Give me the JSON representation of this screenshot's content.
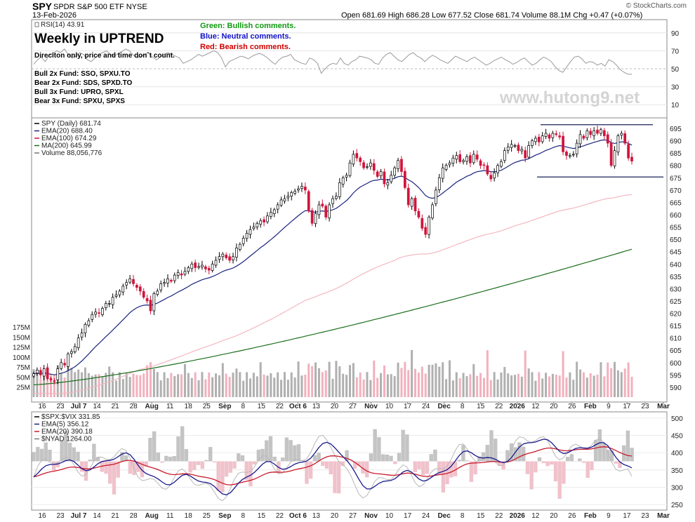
{
  "header": {
    "symbol": "SPY",
    "name": "SPDR S&P 500 ETF",
    "exchange": "NYSE",
    "date": "13-Feb-2026",
    "brand": "© StockCharts.com",
    "quote": "Open 681.69   High 686.28   Low 677.52   Close 681.74   Volume 88.1M   Chg +0.47 (+0.07%)"
  },
  "annotations": {
    "title": "Weekly in UPTREND",
    "subtitle": "Direciton only, price and time don`t count.",
    "funds": [
      "Bull 2x Fund: SSO, SPXU.TO",
      "Bear 2x Fund: SDS, SPXD.TO",
      "Bull 3x Fund: UPRO, SPXL",
      "Bear 3x Fund: SPXU, SPXS"
    ],
    "green": "Green: Bullish comments.",
    "blue": "Blue: Neutral comments.",
    "red": "Red: Bearish comments.",
    "watermark": "www.hutong9.net"
  },
  "colors": {
    "up": "#ffffff",
    "down": "#d0143c",
    "ema20": "#1a237e",
    "ema100": "#f2b8c0",
    "ma200": "#1b6e1b",
    "vol_up": "#b0b0b0",
    "vol_down": "#f2b1bd",
    "green_comment": "#119911",
    "blue_comment": "#1010c8",
    "red_comment": "#d00000"
  },
  "chart_data": [
    {
      "type": "line",
      "panel": "RSI",
      "legend": "RSI(14) 43.91",
      "ylim": [
        0,
        100
      ],
      "y_ticks": [
        10,
        30,
        50,
        70,
        90
      ],
      "values": [
        55,
        60,
        63,
        58,
        65,
        67,
        70,
        68,
        72,
        66,
        62,
        64,
        68,
        66,
        60,
        58,
        62,
        66,
        68,
        70,
        66,
        64,
        67,
        69,
        72,
        70,
        65,
        62,
        64,
        66,
        68,
        63,
        60,
        63,
        66,
        68,
        66,
        64,
        62,
        56,
        58,
        60,
        63,
        66,
        64,
        66,
        68,
        70,
        68,
        62,
        52,
        58,
        60,
        62,
        64,
        63,
        61,
        64,
        66,
        67,
        65,
        62,
        58,
        55,
        60,
        63,
        64,
        66,
        60,
        58,
        56,
        55,
        62,
        60,
        56,
        45,
        50,
        54,
        56,
        55,
        62,
        56,
        54,
        58,
        60,
        64,
        63,
        62,
        60,
        56,
        55,
        62,
        66,
        68,
        64,
        60,
        58,
        62,
        66,
        68,
        64,
        62,
        58,
        62,
        65,
        63,
        60,
        58,
        56,
        60,
        64,
        62,
        60,
        58,
        61,
        63,
        60,
        57,
        54,
        56,
        59,
        61,
        63,
        60,
        58,
        55,
        57,
        60,
        62,
        58,
        54,
        56,
        60,
        63,
        61,
        58,
        52,
        48,
        46,
        52,
        58,
        63,
        64,
        61,
        56,
        58,
        57,
        54,
        56,
        53,
        60,
        58,
        54,
        49,
        46,
        44,
        43.91
      ]
    },
    {
      "type": "candlestick",
      "panel": "Price",
      "legend": [
        "SPY (Daily) 681.74",
        "EMA(20) 688.40",
        "EMA(100) 674.29",
        "MA(200) 645.99",
        "Volume 88,056,776"
      ],
      "ylim": [
        586,
        697
      ],
      "y_ticks": [
        590,
        595,
        600,
        605,
        610,
        615,
        620,
        625,
        630,
        635,
        640,
        645,
        650,
        655,
        660,
        665,
        670,
        675,
        680,
        685,
        690,
        695
      ],
      "vol_ticks": [
        "25M",
        "50M",
        "75M",
        "100M",
        "125M",
        "150M",
        "175M"
      ],
      "x_ticks": [
        "16",
        "23",
        "Jul 7",
        "14",
        "21",
        "28",
        "Aug",
        "11",
        "18",
        "25",
        "Sep",
        "8",
        "15",
        "22",
        "Oct 6",
        "13",
        "20",
        "27",
        "Nov",
        "10",
        "17",
        "24",
        "Dec",
        "8",
        "15",
        "22",
        "2026",
        "12",
        "20",
        "26",
        "Feb",
        "9",
        "17",
        "23",
        "Mar"
      ],
      "closes": [
        595.5,
        597.0,
        595.0,
        597.5,
        593.5,
        593.0,
        592.5,
        597.5,
        600.0,
        599.0,
        603.5,
        604.5,
        606.5,
        610.0,
        612.0,
        615.5,
        617.0,
        619.5,
        620.5,
        620.0,
        622.0,
        624.0,
        624.0,
        626.5,
        627.5,
        629.0,
        631.0,
        632.5,
        634.0,
        632.0,
        630.5,
        629.0,
        626.5,
        625.0,
        621.0,
        628.0,
        629.0,
        632.0,
        632.5,
        634.0,
        633.0,
        635.5,
        636.5,
        635.5,
        637.0,
        638.5,
        640.0,
        638.5,
        639.0,
        639.5,
        638.0,
        637.5,
        640.0,
        641.5,
        643.0,
        644.0,
        642.5,
        641.5,
        643.0,
        646.5,
        648.0,
        650.5,
        652.5,
        654.0,
        655.0,
        656.5,
        657.5,
        657.0,
        659.5,
        661.0,
        662.0,
        664.0,
        666.0,
        666.5,
        667.5,
        669.0,
        669.5,
        670.5,
        671.5,
        670.0,
        661.5,
        656.5,
        660.5,
        664.0,
        663.5,
        659.0,
        664.0,
        666.5,
        667.5,
        673.0,
        675.0,
        676.0,
        681.0,
        684.5,
        683.0,
        681.5,
        679.0,
        679.5,
        681.0,
        678.0,
        675.5,
        677.5,
        672.5,
        673.0,
        676.0,
        679.0,
        682.0,
        677.5,
        671.0,
        664.0,
        666.5,
        661.5,
        659.0,
        654.5,
        652.0,
        659.0,
        664.0,
        670.0,
        675.0,
        679.0,
        680.0,
        681.0,
        683.0,
        684.0,
        681.5,
        682.0,
        683.5,
        681.0,
        684.5,
        682.5,
        680.0,
        680.0,
        676.5,
        674.5,
        677.0,
        680.0,
        681.5,
        686.0,
        687.5,
        688.5,
        688.0,
        686.0,
        686.5,
        683.0,
        688.0,
        690.0,
        691.0,
        689.5,
        692.0,
        693.0,
        691.0,
        693.0,
        692.5,
        691.5,
        685.5,
        684.0,
        684.0,
        684.5,
        689.0,
        692.5,
        691.0,
        694.0,
        692.5,
        694.0,
        693.0,
        694.5,
        692.0,
        689.0,
        680.0,
        686.0,
        692.0,
        693.0,
        689.0,
        683.0,
        681.74
      ],
      "ema20_last": 688.4,
      "ema100_last": 674.29,
      "ma200_last": 645.99,
      "horizontal_lines": [
        696.5,
        675.3
      ]
    },
    {
      "type": "line",
      "panel": "$SPX:$VIX",
      "legend": [
        "$SPX:$VIX 331.85",
        "EMA(5) 356.12",
        "EMA(20) 390.18",
        "$NYAD 1264.00"
      ],
      "ylim": [
        240,
        512
      ],
      "y_ticks": [
        250,
        300,
        350,
        400,
        450,
        500
      ],
      "last_values": {
        "ratio": 331.85,
        "ema5": 356.12,
        "ema20": 390.18,
        "nyad": 1264.0
      }
    }
  ]
}
